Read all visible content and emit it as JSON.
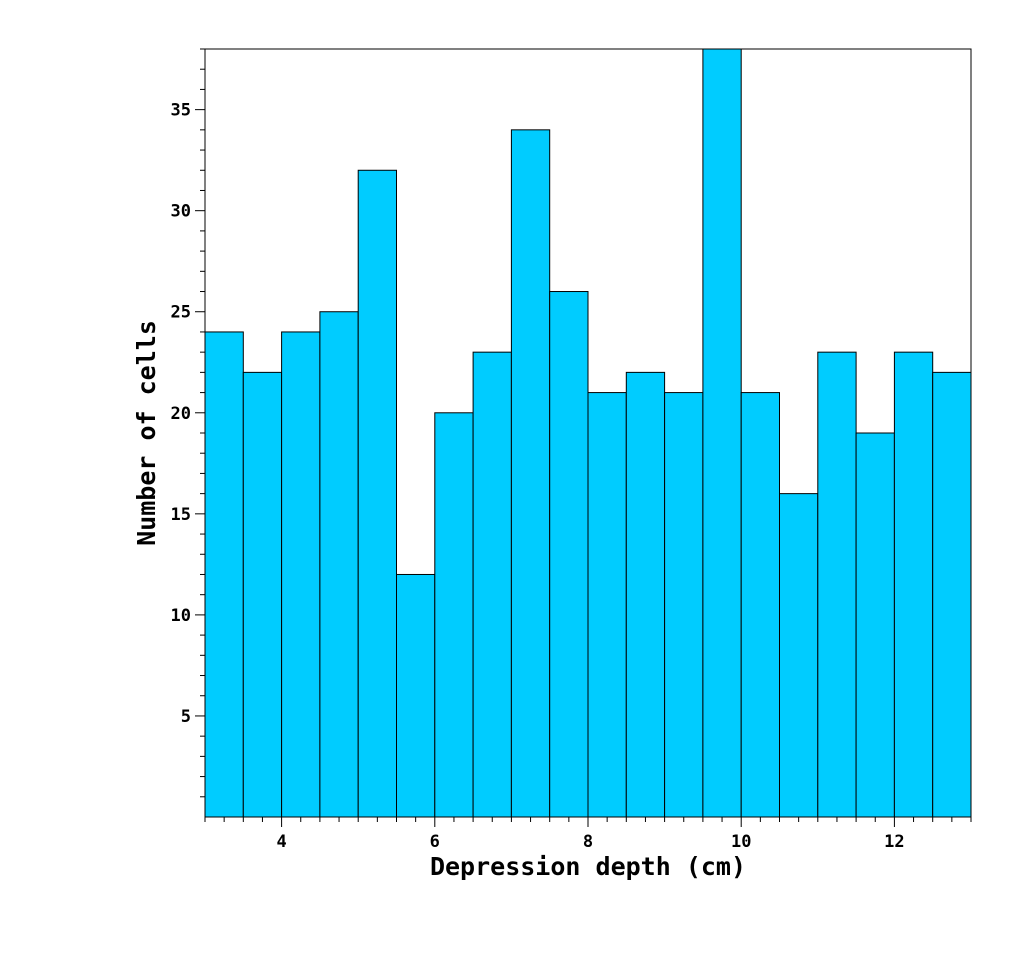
{
  "chart_data": {
    "type": "histogram",
    "title": "",
    "xlabel": "Depression depth (cm)",
    "ylabel": "Number of cells",
    "xlim": [
      3,
      13
    ],
    "ylim": [
      0,
      38
    ],
    "x_ticks": [
      4,
      6,
      8,
      10,
      12
    ],
    "y_ticks": [
      5,
      10,
      15,
      20,
      25,
      30,
      35
    ],
    "x_tick_labels": [
      "4",
      "6",
      "8",
      "10",
      "12"
    ],
    "y_tick_labels": [
      "5",
      "10",
      "15",
      "20",
      "25",
      "30",
      "35"
    ],
    "bin_width": 0.5,
    "bin_starts": [
      3,
      3.5,
      4,
      4.5,
      5,
      5.5,
      6,
      6.5,
      7,
      7.5,
      8,
      8.5,
      9,
      9.5,
      10,
      10.5,
      11,
      11.5,
      12,
      12.5
    ],
    "values": [
      24,
      22,
      24,
      25,
      32,
      12,
      20,
      23,
      34,
      26,
      21,
      22,
      21,
      38,
      21,
      16,
      23,
      19,
      23,
      22
    ],
    "bar_color": "#00ccff",
    "edge_color": "#000000",
    "grid": false,
    "legend": "none"
  }
}
